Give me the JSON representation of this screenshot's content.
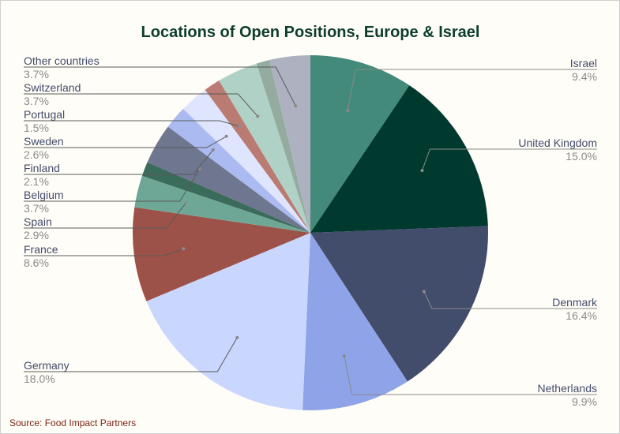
{
  "chart_data": {
    "type": "pie",
    "title": "Locations of Open Positions, Europe & Israel",
    "source": "Source: Food Impact Partners",
    "categories": [
      "Israel",
      "United Kingdom",
      "Denmark",
      "Netherlands",
      "Germany",
      "France",
      "Spain",
      null,
      "Belgium",
      "Finland",
      "Sweden",
      "Portugal",
      "Switzerland",
      null,
      "Other countries"
    ],
    "values": [
      9.4,
      15.0,
      16.4,
      9.9,
      18.0,
      8.6,
      2.9,
      1.3,
      3.7,
      2.1,
      2.6,
      1.5,
      3.7,
      1.2,
      3.7
    ],
    "value_labels": [
      "9.4%",
      "15.0%",
      "16.4%",
      "9.9%",
      "18.0%",
      "8.6%",
      "2.9%",
      null,
      "3.7%",
      "2.1%",
      "2.6%",
      "1.5%",
      "3.7%",
      null,
      "3.7%"
    ],
    "colors": [
      "#438a7a",
      "#003a2f",
      "#424c6b",
      "#8ea3e8",
      "#c9d6fd",
      "#9c5249",
      "#6fa796",
      "#3b6b5a",
      "#6f7690",
      "#abbaf0",
      "#dfe5fe",
      "#b97b72",
      "#b0d1c6",
      "#94ab9f",
      "#aeb2c0"
    ]
  }
}
